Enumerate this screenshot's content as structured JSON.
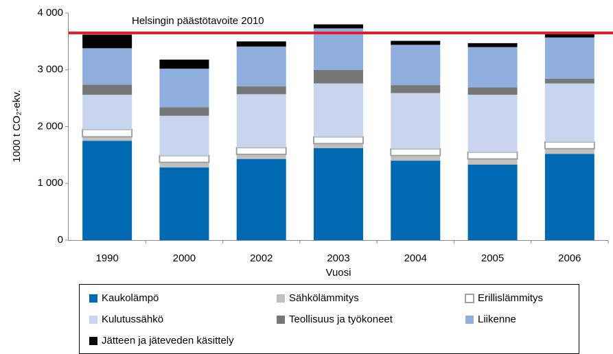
{
  "chart_data": {
    "type": "stacked_bar",
    "y_label": "1000 t CO₂-ekv.",
    "x_label": "Vuosi",
    "categories": [
      "1990",
      "2000",
      "2002",
      "2003",
      "2004",
      "2005",
      "2006"
    ],
    "series": [
      {
        "name": "Kaukolämpö",
        "color": "#0069b4",
        "values": [
          1750,
          1280,
          1430,
          1620,
          1400,
          1330,
          1520
        ]
      },
      {
        "name": "Sähkölämmitys",
        "color": "#c0c0c0",
        "values": [
          70,
          90,
          80,
          80,
          90,
          100,
          90
        ]
      },
      {
        "name": "Erillislämmitys",
        "color": "#ffffff",
        "values": [
          130,
          120,
          120,
          120,
          120,
          120,
          120
        ]
      },
      {
        "name": "Kulutussähkö",
        "color": "#c7d5ee",
        "values": [
          610,
          700,
          940,
          940,
          980,
          1010,
          1030
        ]
      },
      {
        "name": "Teollisuus ja työkoneet",
        "color": "#777777",
        "values": [
          180,
          150,
          140,
          240,
          140,
          130,
          80
        ]
      },
      {
        "name": "Liikenne",
        "color": "#8eafdd",
        "values": [
          640,
          680,
          700,
          730,
          710,
          710,
          730
        ]
      },
      {
        "name": "Jätteen ja jäteveden käsittely",
        "color": "#000000",
        "values": [
          240,
          160,
          90,
          70,
          70,
          70,
          60
        ]
      }
    ],
    "target": {
      "label": "Helsingin päästötavoite 2010",
      "value": 3650,
      "color": "#e3202a"
    },
    "ylim": [
      0,
      4000
    ],
    "yticks": [
      0,
      {
        "value": 1000,
        "label": "1 000"
      },
      {
        "value": 2000,
        "label": "2 000"
      },
      {
        "value": 3000,
        "label": "3 000"
      },
      {
        "value": 4000,
        "label": "4 000"
      }
    ],
    "grid": false
  }
}
